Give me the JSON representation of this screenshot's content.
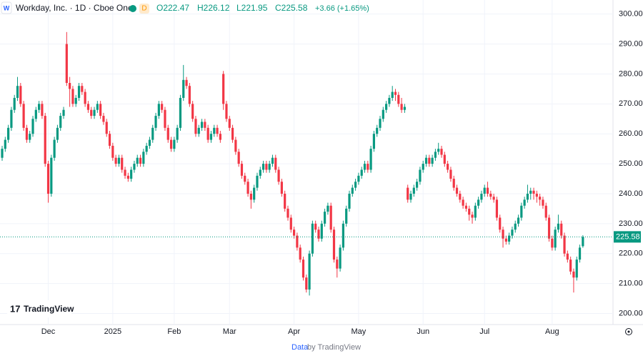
{
  "chart_data": {
    "type": "candlestick",
    "title": "Workday, Inc. · 1D · Cboe One",
    "badge": "D",
    "ohlc_text": [
      "O222.47",
      "H226.12",
      "L221.95",
      "C225.58"
    ],
    "change_text": "+3.66 (+1.65%)",
    "up_color": "#089981",
    "down_color": "#f23645",
    "grid": true,
    "ylim": [
      196.3,
      304.7
    ],
    "yticks": [
      {
        "value": 200,
        "label": "200.00"
      },
      {
        "value": 210,
        "label": "210.00"
      },
      {
        "value": 220,
        "label": "220.00"
      },
      {
        "value": 230,
        "label": "230.00"
      },
      {
        "value": 240,
        "label": "240.00"
      },
      {
        "value": 250,
        "label": "250.00"
      },
      {
        "value": 260,
        "label": "260.00"
      },
      {
        "value": 270,
        "label": "270.00"
      },
      {
        "value": 280,
        "label": "280.00"
      },
      {
        "value": 290,
        "label": "290.00"
      },
      {
        "value": 300,
        "label": "300.00"
      }
    ],
    "xlim": [
      -0.7,
      198.8
    ],
    "xticks": [
      {
        "value": 15,
        "label": "Dec"
      },
      {
        "value": 36,
        "label": "2025"
      },
      {
        "value": 56,
        "label": "Feb"
      },
      {
        "value": 74,
        "label": "Mar"
      },
      {
        "value": 95,
        "label": "Apr"
      },
      {
        "value": 116,
        "label": "May"
      },
      {
        "value": 137,
        "label": "Jun"
      },
      {
        "value": 157,
        "label": "Jul"
      },
      {
        "value": 179,
        "label": "Aug"
      }
    ],
    "ohlc": [
      [
        252,
        256,
        251,
        255
      ],
      [
        255,
        259,
        254,
        258
      ],
      [
        258,
        263,
        257,
        262
      ],
      [
        262,
        269,
        261,
        268
      ],
      [
        268,
        273,
        267,
        272
      ],
      [
        272,
        279,
        271,
        276
      ],
      [
        276,
        277,
        269,
        270
      ],
      [
        270,
        271,
        261,
        262
      ],
      [
        262,
        263,
        257,
        258
      ],
      [
        258,
        261,
        257,
        260
      ],
      [
        260,
        266,
        259,
        265
      ],
      [
        265,
        269,
        264,
        268
      ],
      [
        268,
        271,
        267,
        270
      ],
      [
        270,
        271,
        265,
        266
      ],
      [
        266,
        267,
        249,
        250
      ],
      [
        250,
        251,
        237,
        240
      ],
      [
        240,
        253,
        239,
        252
      ],
      [
        252,
        259,
        251,
        258
      ],
      [
        258,
        263,
        257,
        262
      ],
      [
        262,
        267,
        261,
        266
      ],
      [
        266,
        269,
        265,
        268
      ],
      [
        290,
        294,
        276,
        277
      ],
      [
        277,
        279,
        269,
        275
      ],
      [
        275,
        276,
        269,
        270
      ],
      [
        270,
        273,
        269,
        272
      ],
      [
        272,
        277,
        271,
        276
      ],
      [
        276,
        277,
        273,
        274
      ],
      [
        274,
        275,
        269,
        270
      ],
      [
        270,
        271,
        267,
        268
      ],
      [
        268,
        269,
        265,
        266
      ],
      [
        266,
        269,
        265,
        268
      ],
      [
        268,
        271,
        267,
        270
      ],
      [
        270,
        271,
        265,
        266
      ],
      [
        266,
        267,
        263,
        264
      ],
      [
        264,
        265,
        259,
        260
      ],
      [
        260,
        261,
        255,
        256
      ],
      [
        256,
        257,
        251,
        252
      ],
      [
        252,
        253,
        249,
        250
      ],
      [
        250,
        253,
        249,
        252
      ],
      [
        252,
        253,
        247,
        248
      ],
      [
        248,
        249,
        245,
        246
      ],
      [
        246,
        247,
        244,
        245
      ],
      [
        245,
        249,
        244,
        248
      ],
      [
        248,
        251,
        247,
        250
      ],
      [
        250,
        253,
        249,
        252
      ],
      [
        252,
        253,
        249,
        250
      ],
      [
        250,
        255,
        249,
        254
      ],
      [
        254,
        257,
        253,
        256
      ],
      [
        256,
        259,
        255,
        258
      ],
      [
        258,
        263,
        257,
        262
      ],
      [
        262,
        267,
        261,
        266
      ],
      [
        266,
        271,
        265,
        270
      ],
      [
        270,
        271,
        267,
        268
      ],
      [
        268,
        269,
        261,
        262
      ],
      [
        262,
        263,
        257,
        258
      ],
      [
        258,
        259,
        254,
        255
      ],
      [
        255,
        259,
        254,
        258
      ],
      [
        258,
        263,
        257,
        262
      ],
      [
        262,
        273,
        261,
        272
      ],
      [
        272,
        283,
        271,
        278
      ],
      [
        278,
        279,
        275,
        276
      ],
      [
        276,
        277,
        269,
        270
      ],
      [
        270,
        271,
        264,
        265
      ],
      [
        265,
        266,
        259,
        260
      ],
      [
        260,
        263,
        259,
        262
      ],
      [
        262,
        265,
        261,
        264
      ],
      [
        264,
        265,
        261,
        262
      ],
      [
        262,
        263,
        257,
        258
      ],
      [
        258,
        261,
        257,
        260
      ],
      [
        260,
        263,
        259,
        262
      ],
      [
        262,
        263,
        259,
        260
      ],
      [
        260,
        261,
        257,
        258
      ],
      [
        280,
        281,
        268,
        270
      ],
      [
        270,
        271,
        264,
        265
      ],
      [
        265,
        266,
        261,
        262
      ],
      [
        262,
        263,
        257,
        258
      ],
      [
        258,
        259,
        253,
        254
      ],
      [
        254,
        255,
        249,
        250
      ],
      [
        250,
        251,
        245,
        246
      ],
      [
        246,
        247,
        243,
        244
      ],
      [
        244,
        245,
        239,
        240
      ],
      [
        240,
        241,
        235,
        238
      ],
      [
        238,
        243,
        237,
        242
      ],
      [
        242,
        247,
        241,
        246
      ],
      [
        246,
        249,
        245,
        248
      ],
      [
        248,
        251,
        247,
        250
      ],
      [
        250,
        251,
        247,
        248
      ],
      [
        248,
        251,
        247,
        250
      ],
      [
        250,
        253,
        249,
        252
      ],
      [
        252,
        253,
        247,
        248
      ],
      [
        248,
        249,
        243,
        244
      ],
      [
        244,
        245,
        239,
        240
      ],
      [
        240,
        241,
        234,
        235
      ],
      [
        235,
        236,
        231,
        232
      ],
      [
        232,
        233,
        227,
        228
      ],
      [
        228,
        229,
        225,
        226
      ],
      [
        226,
        227,
        221,
        222
      ],
      [
        222,
        223,
        217,
        218
      ],
      [
        218,
        219,
        211,
        212
      ],
      [
        212,
        213,
        207,
        208
      ],
      [
        208,
        221,
        206,
        220
      ],
      [
        220,
        231,
        219,
        230
      ],
      [
        230,
        231,
        227,
        228
      ],
      [
        228,
        229,
        224,
        225
      ],
      [
        225,
        231,
        224,
        230
      ],
      [
        230,
        235,
        229,
        234
      ],
      [
        234,
        237,
        233,
        236
      ],
      [
        236,
        237,
        227,
        228
      ],
      [
        228,
        229,
        217,
        218
      ],
      [
        218,
        219,
        212,
        215
      ],
      [
        215,
        223,
        214,
        222
      ],
      [
        222,
        231,
        221,
        230
      ],
      [
        230,
        236,
        229,
        235
      ],
      [
        235,
        241,
        234,
        240
      ],
      [
        240,
        243,
        239,
        242
      ],
      [
        242,
        245,
        241,
        244
      ],
      [
        244,
        247,
        243,
        246
      ],
      [
        246,
        249,
        245,
        248
      ],
      [
        248,
        251,
        247,
        250
      ],
      [
        250,
        251,
        247,
        248
      ],
      [
        248,
        256,
        247,
        255
      ],
      [
        255,
        261,
        254,
        260
      ],
      [
        260,
        263,
        259,
        262
      ],
      [
        262,
        266,
        261,
        265
      ],
      [
        265,
        269,
        264,
        268
      ],
      [
        268,
        271,
        267,
        270
      ],
      [
        270,
        273,
        269,
        272
      ],
      [
        272,
        276,
        271,
        274
      ],
      [
        274,
        275,
        271,
        273
      ],
      [
        273,
        274,
        269,
        270
      ],
      [
        270,
        272,
        267,
        268
      ],
      [
        268,
        270,
        267,
        269
      ],
      [
        242,
        243,
        237,
        238
      ],
      [
        238,
        241,
        237,
        240
      ],
      [
        240,
        243,
        239,
        242
      ],
      [
        242,
        245,
        241,
        244
      ],
      [
        244,
        249,
        243,
        248
      ],
      [
        248,
        251,
        247,
        250
      ],
      [
        250,
        253,
        249,
        252
      ],
      [
        252,
        253,
        249,
        250
      ],
      [
        250,
        253,
        249,
        252
      ],
      [
        252,
        255,
        251,
        254
      ],
      [
        254,
        257,
        253,
        255
      ],
      [
        255,
        256,
        252,
        253
      ],
      [
        253,
        254,
        249,
        250
      ],
      [
        250,
        251,
        247,
        248
      ],
      [
        248,
        249,
        244,
        245
      ],
      [
        245,
        246,
        241,
        242
      ],
      [
        242,
        243,
        239,
        240
      ],
      [
        240,
        241,
        237,
        238
      ],
      [
        238,
        239,
        235,
        236
      ],
      [
        236,
        237,
        234,
        235
      ],
      [
        235,
        236,
        231,
        233
      ],
      [
        233,
        234,
        230,
        232
      ],
      [
        232,
        237,
        231,
        236
      ],
      [
        236,
        239,
        235,
        238
      ],
      [
        238,
        241,
        237,
        240
      ],
      [
        240,
        243,
        239,
        242
      ],
      [
        242,
        244,
        239,
        240
      ],
      [
        240,
        241,
        238,
        239
      ],
      [
        239,
        240,
        237,
        238
      ],
      [
        238,
        239,
        231,
        232
      ],
      [
        232,
        233,
        227,
        228
      ],
      [
        228,
        229,
        222,
        225
      ],
      [
        225,
        226,
        223,
        224
      ],
      [
        224,
        227,
        223,
        226
      ],
      [
        226,
        229,
        225,
        228
      ],
      [
        228,
        231,
        227,
        230
      ],
      [
        230,
        233,
        229,
        232
      ],
      [
        232,
        237,
        231,
        236
      ],
      [
        236,
        239,
        235,
        238
      ],
      [
        238,
        243,
        237,
        240
      ],
      [
        240,
        242,
        238,
        241
      ],
      [
        241,
        242,
        238,
        240
      ],
      [
        240,
        241,
        237,
        239
      ],
      [
        239,
        240,
        236,
        238
      ],
      [
        238,
        239,
        235,
        236
      ],
      [
        236,
        237,
        231,
        232
      ],
      [
        232,
        233,
        224,
        225
      ],
      [
        225,
        226,
        221,
        222
      ],
      [
        222,
        229,
        221,
        228
      ],
      [
        228,
        233,
        227,
        230
      ],
      [
        230,
        231,
        225,
        226
      ],
      [
        226,
        227,
        219,
        220
      ],
      [
        220,
        221,
        217,
        218
      ],
      [
        218,
        219,
        213,
        214
      ],
      [
        214,
        215,
        207,
        212
      ],
      [
        212,
        219,
        211,
        218
      ],
      [
        218,
        223,
        217,
        222
      ],
      [
        222.47,
        226.12,
        221.95,
        225.58
      ]
    ],
    "logo": "TradingView",
    "footer": {
      "link": "Data",
      "text": "by TradingView"
    }
  }
}
